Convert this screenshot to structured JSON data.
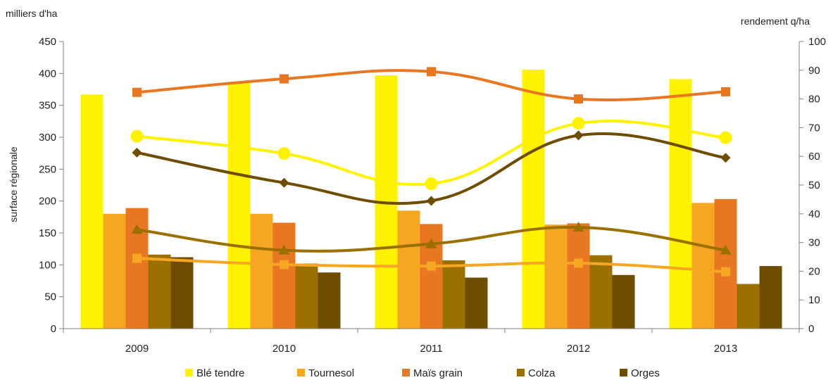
{
  "chart_data": {
    "type": "bar",
    "categories": [
      "2009",
      "2010",
      "2011",
      "2012",
      "2013"
    ],
    "left_axis_title": "milliers d'ha",
    "left_axis_label": "surface régionale",
    "right_axis_title": "rendement q/ha",
    "y_left_lim": [
      0,
      450
    ],
    "y_left_ticks": [
      "0",
      "50",
      "100",
      "150",
      "200",
      "250",
      "300",
      "350",
      "400",
      "450"
    ],
    "y_right_lim": [
      0,
      100
    ],
    "y_right_ticks": [
      "0",
      "10",
      "20",
      "30",
      "40",
      "50",
      "60",
      "70",
      "80",
      "90",
      "100"
    ],
    "grid": false,
    "legend_position": "bottom",
    "bar_series": [
      {
        "name": "Blé tendre",
        "color": "#fff200",
        "values": [
          367,
          385,
          397,
          406,
          391
        ]
      },
      {
        "name": "Tournesol",
        "color": "#f5a623",
        "values": [
          180,
          180,
          185,
          163,
          197
        ]
      },
      {
        "name": "Maïs grain",
        "color": "#e87722",
        "values": [
          189,
          166,
          164,
          165,
          203
        ]
      },
      {
        "name": "Colza",
        "color": "#9c7000",
        "values": [
          116,
          102,
          107,
          115,
          70
        ]
      },
      {
        "name": "Orges",
        "color": "#6e4c00",
        "values": [
          112,
          88,
          80,
          84,
          98
        ]
      }
    ],
    "line_series": [
      {
        "label": "Blé tendre rendement",
        "color": "#fff200",
        "marker": "circle",
        "axis": "right",
        "values": [
          67,
          61,
          50.5,
          71.5,
          66.5
        ]
      },
      {
        "label": "Tournesol rendement",
        "color": "#f5a623",
        "marker": "square",
        "axis": "right",
        "values": [
          24.5,
          22.3,
          21.8,
          22.8,
          19.8
        ]
      },
      {
        "label": "Maïs grain rendement",
        "color": "#e87722",
        "marker": "square",
        "axis": "right",
        "values": [
          82.3,
          87,
          89.5,
          80,
          82.5
        ]
      },
      {
        "label": "Colza rendement",
        "color": "#9c7000",
        "marker": "triangle",
        "axis": "right",
        "values": [
          34.5,
          27.3,
          29.5,
          35.3,
          27.3
        ]
      },
      {
        "label": "Orges rendement",
        "color": "#6e4c00",
        "marker": "diamond",
        "axis": "right",
        "values": [
          61.3,
          50.8,
          44.5,
          67.3,
          59.5
        ]
      }
    ]
  }
}
